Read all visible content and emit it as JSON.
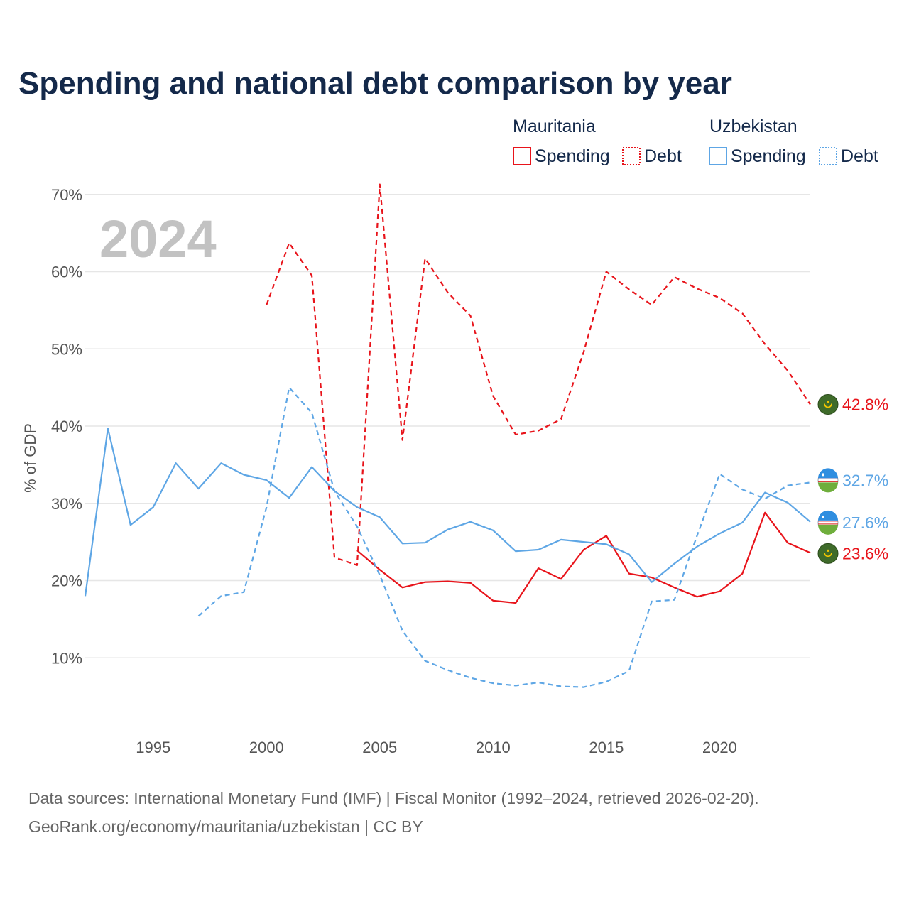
{
  "title": "Spending and national debt comparison by year",
  "year_label": "2024",
  "source_line1": "Data sources: International Monetary Fund (IMF) | Fiscal Monitor (1992–2024, retrieved 2026-02-20).",
  "source_line2": "GeoRank.org/economy/mauritania/uzbekistan | CC BY",
  "legend": {
    "groups": [
      {
        "name": "Mauritania",
        "color": "#e8141b",
        "items": [
          {
            "label": "Spending",
            "style": "solid"
          },
          {
            "label": "Debt",
            "style": "dashed"
          }
        ]
      },
      {
        "name": "Uzbekistan",
        "color": "#5ea6e5",
        "items": [
          {
            "label": "Spending",
            "style": "solid"
          },
          {
            "label": "Debt",
            "style": "dashed"
          }
        ]
      }
    ]
  },
  "chart_data": {
    "type": "line",
    "title": "Spending and national debt comparison by year",
    "xlabel": "",
    "ylabel": "% of GDP",
    "xlim": [
      1992,
      2024
    ],
    "ylim": [
      0,
      72
    ],
    "x_ticks": [
      1995,
      2000,
      2005,
      2010,
      2015,
      2020
    ],
    "y_ticks": [
      10,
      20,
      30,
      40,
      50,
      60,
      70
    ],
    "y_tick_labels": [
      "10%",
      "20%",
      "30%",
      "40%",
      "50%",
      "60%",
      "70%"
    ],
    "grid": true,
    "series": [
      {
        "name": "Mauritania Spending",
        "country": "Mauritania",
        "kind": "spending",
        "color": "#e8141b",
        "style": "solid",
        "x": [
          2004,
          2005,
          2006,
          2007,
          2008,
          2009,
          2010,
          2011,
          2012,
          2013,
          2014,
          2015,
          2016,
          2017,
          2018,
          2019,
          2020,
          2021,
          2022,
          2023,
          2024
        ],
        "y": [
          23.9,
          21.4,
          19.1,
          19.8,
          19.9,
          19.7,
          17.4,
          17.1,
          21.6,
          20.2,
          24.0,
          25.8,
          20.9,
          20.4,
          19.1,
          17.9,
          18.6,
          20.9,
          28.8,
          24.9,
          23.6
        ],
        "end_label": "23.6%"
      },
      {
        "name": "Mauritania Debt",
        "country": "Mauritania",
        "kind": "debt",
        "color": "#e8141b",
        "style": "dashed",
        "x": [
          2000,
          2001,
          2002,
          2003,
          2004,
          2005,
          2006,
          2007,
          2008,
          2009,
          2010,
          2011,
          2012,
          2013,
          2014,
          2015,
          2016,
          2017,
          2018,
          2019,
          2020,
          2021,
          2022,
          2023,
          2024
        ],
        "y": [
          55.7,
          63.7,
          59.5,
          23.0,
          22.0,
          71.3,
          38.2,
          61.7,
          57.3,
          54.3,
          43.9,
          38.9,
          39.4,
          40.9,
          49.6,
          60.0,
          57.7,
          55.7,
          59.3,
          57.8,
          56.6,
          54.6,
          50.6,
          47.2,
          42.8
        ],
        "end_label": "42.8%"
      },
      {
        "name": "Uzbekistan Spending",
        "country": "Uzbekistan",
        "kind": "spending",
        "color": "#5ea6e5",
        "style": "solid",
        "x": [
          1992,
          1993,
          1994,
          1995,
          1996,
          1997,
          1998,
          1999,
          2000,
          2001,
          2002,
          2003,
          2004,
          2005,
          2006,
          2007,
          2008,
          2009,
          2010,
          2011,
          2012,
          2013,
          2014,
          2015,
          2016,
          2017,
          2018,
          2019,
          2020,
          2021,
          2022,
          2023,
          2024
        ],
        "y": [
          18.0,
          39.7,
          27.2,
          29.5,
          35.2,
          31.9,
          35.2,
          33.7,
          33.0,
          30.7,
          34.7,
          31.6,
          29.5,
          28.2,
          24.8,
          24.9,
          26.6,
          27.6,
          26.5,
          23.8,
          24.0,
          25.3,
          25.0,
          24.7,
          23.4,
          19.8,
          22.2,
          24.4,
          26.1,
          27.5,
          31.4,
          30.1,
          27.6
        ],
        "end_label": "27.6%"
      },
      {
        "name": "Uzbekistan Debt",
        "country": "Uzbekistan",
        "kind": "debt",
        "color": "#5ea6e5",
        "style": "dashed",
        "x": [
          1997,
          1998,
          1999,
          2000,
          2001,
          2002,
          2003,
          2004,
          2005,
          2006,
          2007,
          2008,
          2009,
          2010,
          2011,
          2012,
          2013,
          2014,
          2015,
          2016,
          2017,
          2018,
          2019,
          2020,
          2021,
          2022,
          2023,
          2024
        ],
        "y": [
          15.4,
          18.0,
          18.5,
          29.5,
          45.0,
          41.7,
          31.6,
          27.0,
          20.7,
          13.5,
          9.6,
          8.4,
          7.4,
          6.7,
          6.4,
          6.8,
          6.3,
          6.2,
          6.9,
          8.3,
          17.3,
          17.5,
          25.8,
          33.8,
          31.8,
          30.6,
          32.3,
          32.7
        ],
        "end_label": "32.7%"
      }
    ]
  }
}
